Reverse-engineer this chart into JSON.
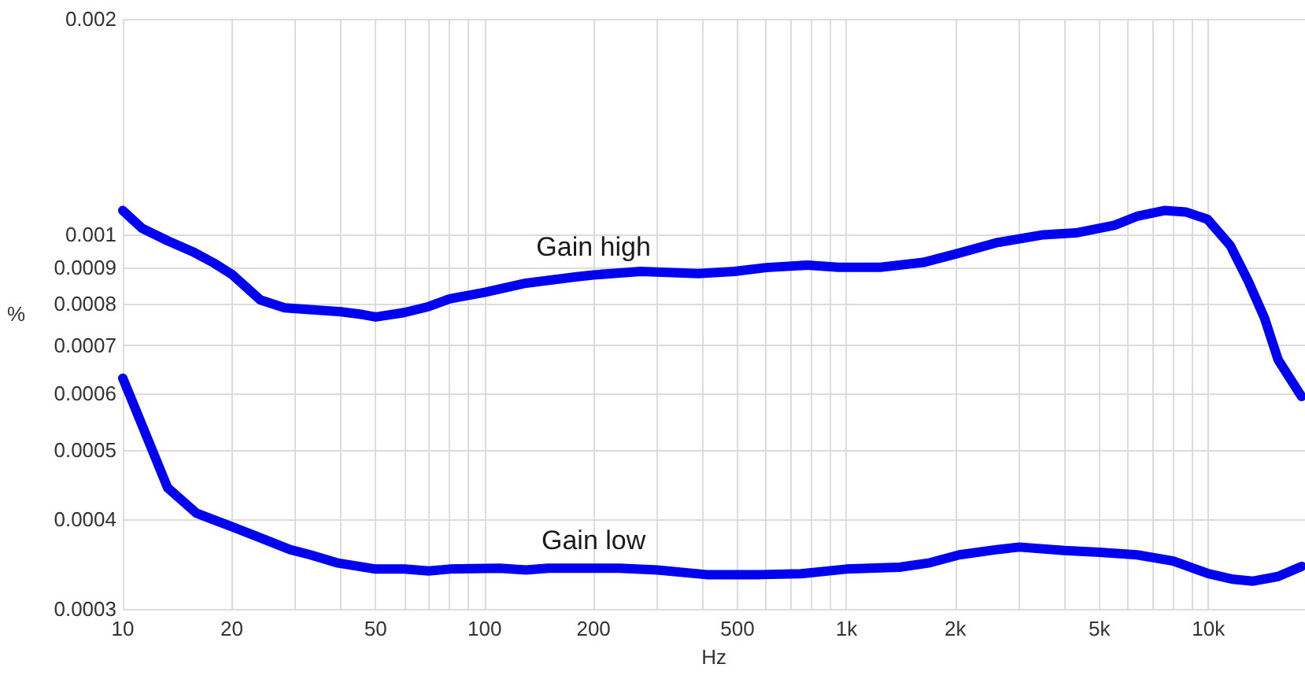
{
  "chart_data": {
    "type": "line",
    "xlabel": "Hz",
    "ylabel": "%",
    "log": "xy",
    "grid": true,
    "legend": false,
    "marker": "none",
    "line_style": "solid",
    "xlim": [
      10,
      18500
    ],
    "ylim": [
      0.0003,
      0.002
    ],
    "xticks": [
      10,
      20,
      {
        "value": 30,
        "label": null
      },
      {
        "value": 40,
        "label": null
      },
      50,
      {
        "value": 60,
        "label": null
      },
      {
        "value": 70,
        "label": null
      },
      {
        "value": 80,
        "label": null
      },
      {
        "value": 90,
        "label": null
      },
      100,
      200,
      {
        "value": 300,
        "label": null
      },
      {
        "value": 400,
        "label": null
      },
      500,
      {
        "value": 600,
        "label": null
      },
      {
        "value": 700,
        "label": null
      },
      {
        "value": 800,
        "label": null
      },
      {
        "value": 900,
        "label": null
      },
      {
        "value": 1000,
        "label": "1k"
      },
      {
        "value": 2000,
        "label": "2k"
      },
      {
        "value": 3000,
        "label": null
      },
      {
        "value": 4000,
        "label": null
      },
      {
        "value": 5000,
        "label": "5k"
      },
      {
        "value": 6000,
        "label": null
      },
      {
        "value": 7000,
        "label": null
      },
      {
        "value": 8000,
        "label": null
      },
      {
        "value": 9000,
        "label": null
      },
      {
        "value": 10000,
        "label": "10k"
      }
    ],
    "yticks": [
      0.0003,
      0.0004,
      0.0005,
      0.0006,
      0.0007,
      0.0008,
      0.0009,
      0.001,
      0.002
    ],
    "series": [
      {
        "name": "Gain high",
        "color": "#0000f0",
        "x": [
          10,
          11.3,
          13.3,
          15.7,
          18,
          20,
          24,
          28,
          40,
          46,
          50,
          60,
          70,
          80,
          100,
          130,
          180,
          200,
          270,
          390,
          490,
          600,
          780,
          950,
          1240,
          1630,
          2050,
          2600,
          3500,
          4300,
          5500,
          6350,
          7560,
          8660,
          9950,
          11500,
          12900,
          14300,
          15600,
          18100
        ],
        "values": [
          0.00108,
          0.00102,
          0.00098,
          0.000945,
          0.00091,
          0.00088,
          0.00081,
          0.00079,
          0.00078,
          0.000773,
          0.000767,
          0.000778,
          0.000793,
          0.000813,
          0.00083,
          0.000855,
          0.000873,
          0.000878,
          0.000888,
          0.000882,
          0.000888,
          0.000899,
          0.000906,
          0.0009,
          0.0009,
          0.000914,
          0.000942,
          0.000974,
          0.000999,
          0.001005,
          0.00103,
          0.00106,
          0.00108,
          0.001075,
          0.00105,
          0.000965,
          0.00086,
          0.000764,
          0.000668,
          0.000594
        ]
      },
      {
        "name": "Gain low",
        "color": "#0000f0",
        "x": [
          10,
          11.3,
          13.3,
          16,
          20,
          24,
          29,
          33,
          39,
          50,
          60,
          70,
          80,
          110,
          130,
          150,
          200,
          235,
          300,
          410,
          580,
          750,
          1000,
          1400,
          1700,
          2050,
          2600,
          3000,
          4000,
          5000,
          6350,
          8000,
          10000,
          11700,
          13300,
          15600,
          18100
        ],
        "values": [
          0.00063,
          0.000542,
          0.000443,
          0.000408,
          0.000391,
          0.000377,
          0.000363,
          0.000357,
          0.000348,
          0.000341,
          0.000341,
          0.000339,
          0.000341,
          0.000342,
          0.00034,
          0.000342,
          0.000342,
          0.000342,
          0.00034,
          0.000335,
          0.000335,
          0.000336,
          0.000341,
          0.000343,
          0.000348,
          0.000357,
          0.000363,
          0.000366,
          0.000362,
          0.00036,
          0.000357,
          0.00035,
          0.000336,
          0.00033,
          0.000328,
          0.000333,
          0.000344
        ]
      }
    ]
  }
}
